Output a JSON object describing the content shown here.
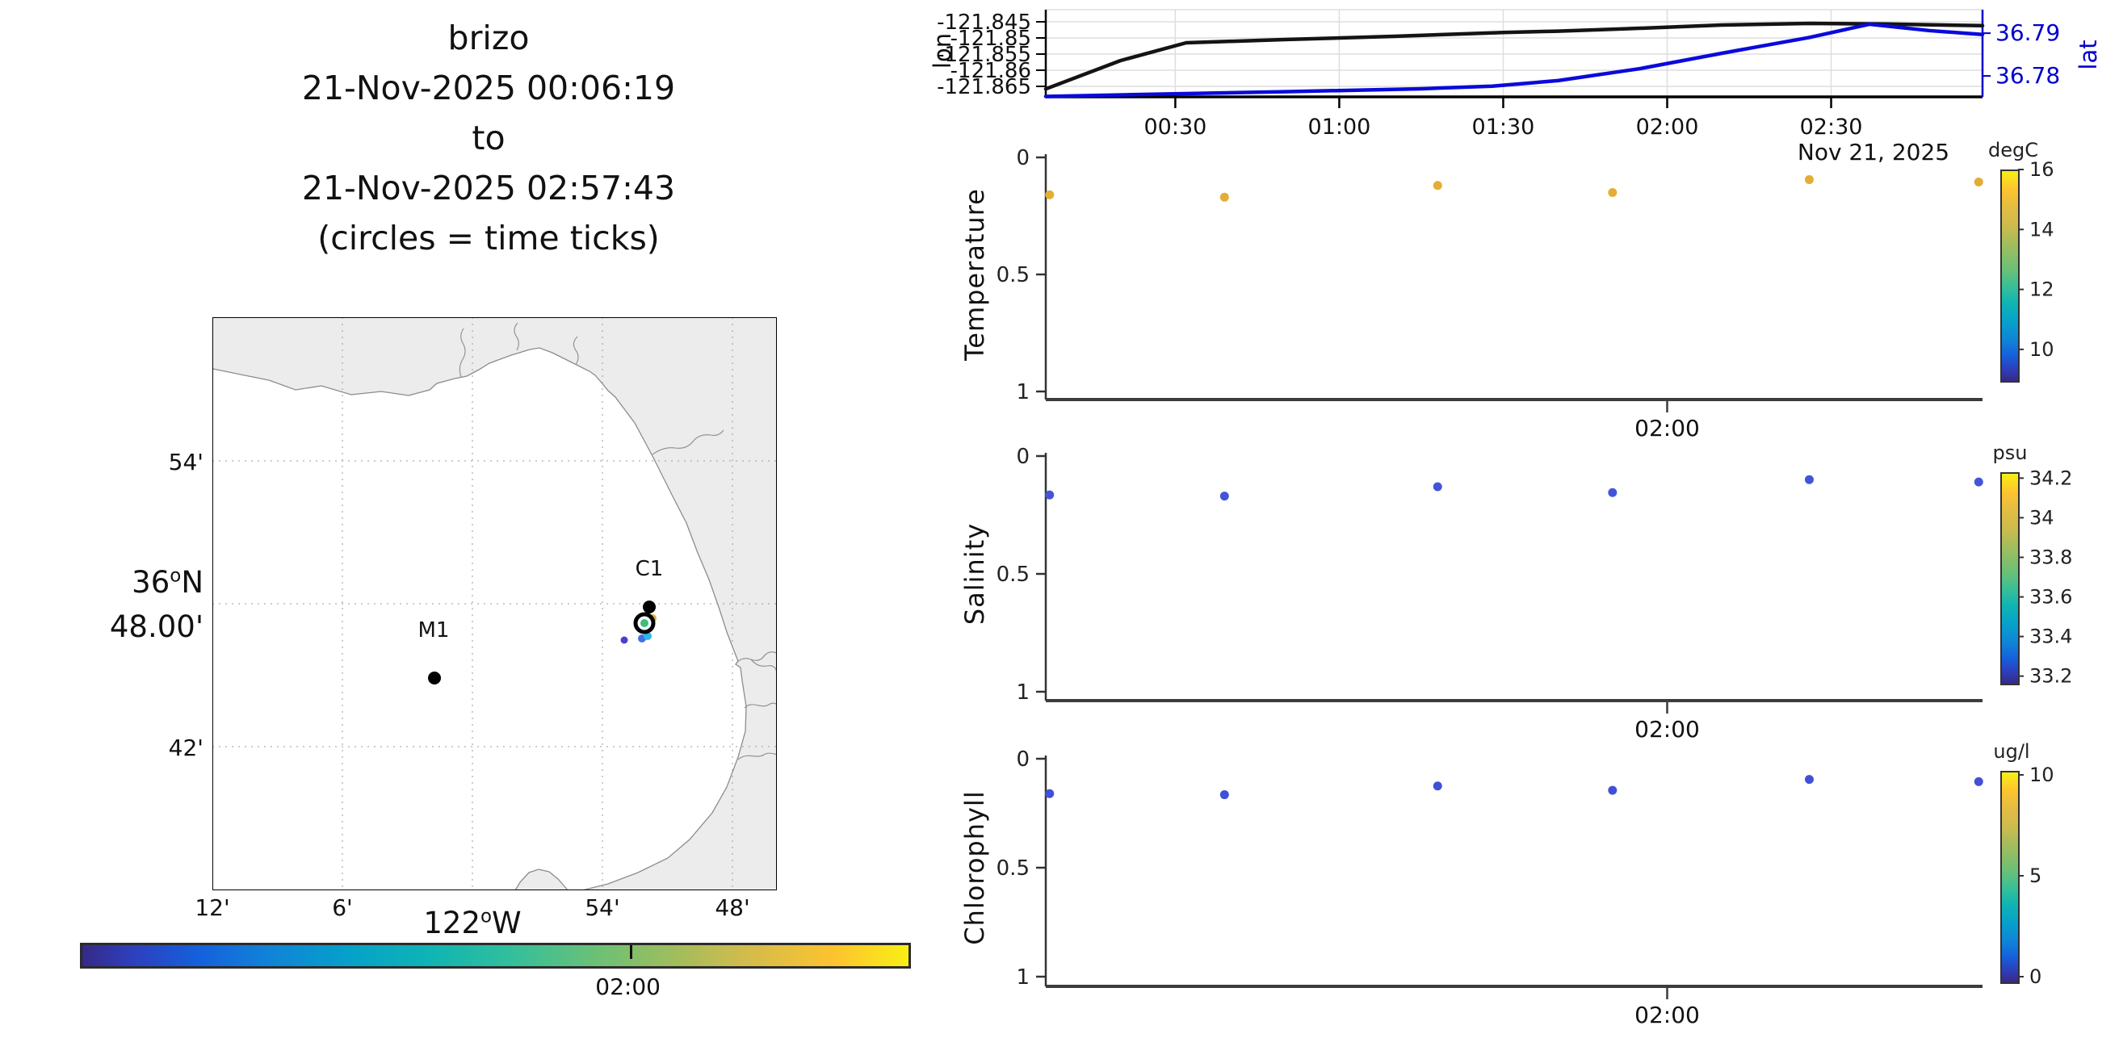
{
  "figure_title": {
    "lines": [
      "brizo",
      "21-Nov-2025 00:06:19",
      "to",
      "21-Nov-2025 02:57:43",
      "(circles = time ticks)"
    ]
  },
  "map": {
    "stations": [
      {
        "label": "M1"
      },
      {
        "label": "C1"
      }
    ],
    "lat_axis": {
      "tick_labels": [
        "54'",
        "42'"
      ],
      "main_label": {
        "deg": "36",
        "sup": "o",
        "hem": "N"
      },
      "minute_label": "48.00'"
    },
    "lon_axis": {
      "tick_labels": [
        "12'",
        "6'",
        "54'",
        "48'"
      ],
      "main_label": {
        "deg": "122",
        "sup": "o",
        "hem": "W"
      }
    },
    "time_colorbar": {
      "tick_label": "02:00",
      "tick_time_min": 120
    }
  },
  "chart_data": [
    {
      "id": "track",
      "type": "line",
      "time_axis": {
        "start_min": 6.3,
        "end_min": 177.7,
        "ticks": [
          {
            "t": 30,
            "label": "00:30"
          },
          {
            "t": 60,
            "label": "01:00"
          },
          {
            "t": 90,
            "label": "01:30"
          },
          {
            "t": 120,
            "label": "02:00"
          },
          {
            "t": 150,
            "label": "02:30"
          }
        ],
        "date_label": "Nov 21, 2025"
      },
      "left_axis": {
        "label": "lon",
        "range": [
          -121.84125,
          -121.86825
        ],
        "ticks": [
          {
            "v": -121.845,
            "label": "-121.845"
          },
          {
            "v": -121.85,
            "label": "-121.85"
          },
          {
            "v": -121.855,
            "label": "-121.855"
          },
          {
            "v": -121.86,
            "label": "-121.86"
          },
          {
            "v": -121.865,
            "label": "-121.865"
          }
        ]
      },
      "right_axis": {
        "label": "lat",
        "color": "#0000cc",
        "range": [
          36.7955,
          36.7751
        ],
        "ticks": [
          {
            "v": 36.79,
            "label": "36.79"
          },
          {
            "v": 36.78,
            "label": "36.78"
          }
        ]
      },
      "series": [
        {
          "name": "lon",
          "axis": "left",
          "color": "#141414",
          "points": [
            [
              6.3,
              -121.8658
            ],
            [
              20,
              -121.857
            ],
            [
              32,
              -121.8515
            ],
            [
              50,
              -121.8505
            ],
            [
              70,
              -121.8495
            ],
            [
              90,
              -121.8483
            ],
            [
              100,
              -121.8479
            ],
            [
              112,
              -121.8472
            ],
            [
              130,
              -121.846
            ],
            [
              146,
              -121.8455
            ],
            [
              160,
              -121.8457
            ],
            [
              177.7,
              -121.8462
            ]
          ]
        },
        {
          "name": "lat",
          "axis": "right",
          "color": "#0a0adb",
          "points": [
            [
              6.3,
              36.7752
            ],
            [
              25,
              36.7757
            ],
            [
              50,
              36.7763
            ],
            [
              75,
              36.777
            ],
            [
              88,
              36.7776
            ],
            [
              100,
              36.7789
            ],
            [
              115,
              36.7817
            ],
            [
              130,
              36.7853
            ],
            [
              146,
              36.789
            ],
            [
              157,
              36.7921
            ],
            [
              168,
              36.7906
            ],
            [
              177.7,
              36.7897
            ]
          ]
        }
      ]
    },
    {
      "id": "temperature",
      "type": "scatter",
      "ylabel": "Temperature",
      "ylim": [
        0,
        1
      ],
      "y_ticks": [
        {
          "v": 0,
          "label": "0"
        },
        {
          "v": 0.5,
          "label": "0.5"
        },
        {
          "v": 1,
          "label": "1"
        }
      ],
      "x_tick": {
        "t": 120,
        "label": "02:00"
      },
      "colorbar": {
        "title": "degC",
        "range": [
          16,
          9
        ],
        "ticks": [
          {
            "v": 16,
            "label": "16"
          },
          {
            "v": 14,
            "label": "14"
          },
          {
            "v": 12,
            "label": "12"
          },
          {
            "v": 10,
            "label": "10"
          }
        ]
      },
      "points": {
        "t": [
          7,
          39,
          78,
          110,
          146,
          177
        ],
        "depth": [
          0.16,
          0.17,
          0.12,
          0.15,
          0.095,
          0.105
        ],
        "color": "#e4ad35"
      }
    },
    {
      "id": "salinity",
      "type": "scatter",
      "ylabel": "Salinity",
      "ylim": [
        0,
        1
      ],
      "y_ticks": [
        {
          "v": 0,
          "label": "0"
        },
        {
          "v": 0.5,
          "label": "0.5"
        },
        {
          "v": 1,
          "label": "1"
        }
      ],
      "x_tick": {
        "t": 120,
        "label": "02:00"
      },
      "colorbar": {
        "title": "psu",
        "range": [
          34.23,
          33.17
        ],
        "ticks": [
          {
            "v": 34.2,
            "label": "34.2"
          },
          {
            "v": 34,
            "label": "34"
          },
          {
            "v": 33.8,
            "label": "33.8"
          },
          {
            "v": 33.6,
            "label": "33.6"
          },
          {
            "v": 33.4,
            "label": "33.4"
          },
          {
            "v": 33.2,
            "label": "33.2"
          }
        ]
      },
      "points": {
        "t": [
          7,
          39,
          78,
          110,
          146,
          177
        ],
        "depth": [
          0.165,
          0.17,
          0.13,
          0.155,
          0.1,
          0.11
        ],
        "color": "#4454d9"
      }
    },
    {
      "id": "chlorophyll",
      "type": "scatter",
      "ylabel": "Chlorophyll",
      "ylim": [
        0,
        1
      ],
      "y_ticks": [
        {
          "v": 0,
          "label": "0"
        },
        {
          "v": 0.5,
          "label": "0.5"
        },
        {
          "v": 1,
          "label": "1"
        }
      ],
      "x_tick": {
        "t": 120,
        "label": "02:00"
      },
      "colorbar": {
        "title": "ug/l",
        "range": [
          10.2,
          -0.2
        ],
        "ticks": [
          {
            "v": 10,
            "label": "10"
          },
          {
            "v": 5,
            "label": "5"
          },
          {
            "v": 0,
            "label": "0"
          }
        ]
      },
      "points": {
        "t": [
          7,
          39,
          78,
          110,
          146,
          177
        ],
        "depth": [
          0.16,
          0.165,
          0.125,
          0.145,
          0.095,
          0.105
        ],
        "color": "#4150d6"
      }
    }
  ]
}
